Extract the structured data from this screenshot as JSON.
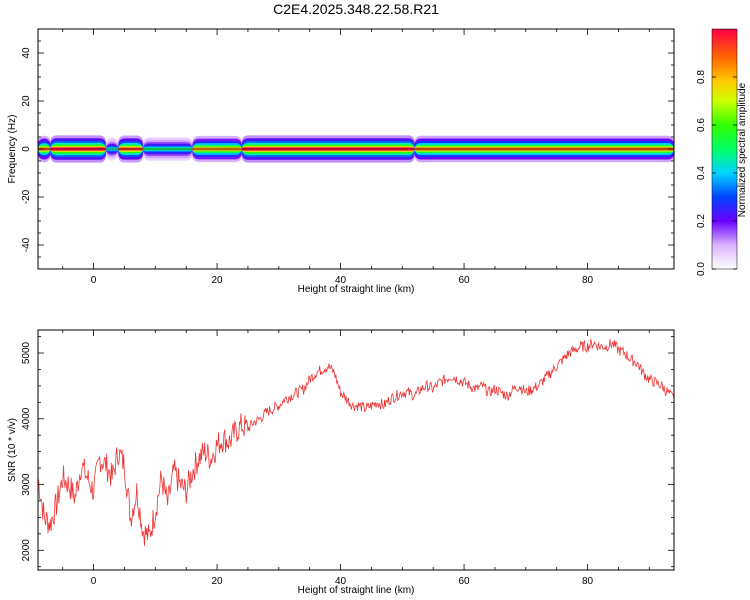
{
  "figure": {
    "title": "C2E4.2025.348.22.58.R21"
  },
  "colors": {
    "snr_line": "#ee3333",
    "frame": "#000000",
    "background": "#ffffff"
  },
  "colorbar": {
    "label": "Normalized spectral amplitude",
    "ticks": [
      "0.0",
      "0.2",
      "0.4",
      "0.6",
      "0.8"
    ],
    "tick_values": [
      0.0,
      0.2,
      0.4,
      0.6,
      0.8
    ],
    "range": [
      0,
      1
    ]
  },
  "chart_data": [
    {
      "type": "heatmap",
      "title": "C2E4.2025.348.22.58.R21",
      "xlabel": "Height of straight line (km)",
      "ylabel": "Frequency (Hz)",
      "xlim": [
        -9,
        94
      ],
      "ylim": [
        -50,
        50
      ],
      "xticks": [
        0,
        20,
        40,
        60,
        80
      ],
      "xtick_labels": [
        "0",
        "20",
        "40",
        "60",
        "80"
      ],
      "yticks": [
        -40,
        -20,
        0,
        20,
        40
      ],
      "ytick_labels": [
        "-40",
        "-20",
        "0",
        "20",
        "40"
      ],
      "description_values": {
        "center_frequency_hz": 0,
        "band_halfwidth_hz": 3,
        "band_segments": [
          {
            "x": [
              -9,
              -7
            ],
            "peak": 0.9
          },
          {
            "x": [
              -7,
              2
            ],
            "peak": 1.0
          },
          {
            "x": [
              2,
              4
            ],
            "peak": 0.45
          },
          {
            "x": [
              4,
              8
            ],
            "peak": 0.95
          },
          {
            "x": [
              8,
              16
            ],
            "peak": 0.5
          },
          {
            "x": [
              16,
              24
            ],
            "peak": 0.85
          },
          {
            "x": [
              24,
              52
            ],
            "peak": 1.0
          },
          {
            "x": [
              52,
              94
            ],
            "peak": 0.9
          }
        ]
      }
    },
    {
      "type": "line",
      "xlabel": "Height of straight line (km)",
      "ylabel": "SNR (10 * v/v)",
      "xlim": [
        -9,
        94
      ],
      "ylim": [
        1700,
        5350
      ],
      "xticks": [
        0,
        20,
        40,
        60,
        80
      ],
      "xtick_labels": [
        "0",
        "20",
        "40",
        "60",
        "80"
      ],
      "yticks": [
        2000,
        3000,
        4000,
        5000
      ],
      "ytick_labels": [
        "2000",
        "3000",
        "4000",
        "5000"
      ],
      "series": [
        {
          "name": "SNR",
          "x": [
            -9,
            -8,
            -7,
            -6,
            -5,
            -4,
            -3,
            -2,
            -1,
            0,
            1,
            2,
            3,
            4,
            5,
            6,
            7,
            8,
            9,
            10,
            11,
            12,
            13,
            14,
            15,
            16,
            17,
            18,
            19,
            20,
            21,
            22,
            23,
            24,
            25,
            26,
            27,
            28,
            29,
            30,
            31,
            32,
            33,
            34,
            35,
            36,
            37,
            38,
            39,
            40,
            41,
            42,
            43,
            44,
            45,
            46,
            47,
            48,
            49,
            50,
            51,
            52,
            53,
            54,
            55,
            56,
            57,
            58,
            59,
            60,
            61,
            62,
            63,
            64,
            65,
            66,
            67,
            68,
            69,
            70,
            71,
            72,
            73,
            74,
            75,
            76,
            77,
            78,
            79,
            80,
            81,
            82,
            83,
            84,
            85,
            86,
            87,
            88,
            89,
            90,
            91,
            92,
            93,
            94
          ],
          "values": [
            3100,
            2500,
            2400,
            2700,
            3100,
            3000,
            2800,
            3300,
            3100,
            2900,
            3400,
            3300,
            3100,
            3500,
            3300,
            2500,
            2900,
            2300,
            2200,
            2600,
            3100,
            2700,
            3200,
            3000,
            2900,
            3200,
            3400,
            3500,
            3400,
            3600,
            3700,
            3650,
            3800,
            3900,
            3850,
            3950,
            4000,
            4100,
            4150,
            4200,
            4300,
            4350,
            4400,
            4450,
            4600,
            4700,
            4750,
            4800,
            4700,
            4400,
            4300,
            4200,
            4200,
            4150,
            4200,
            4250,
            4200,
            4300,
            4350,
            4400,
            4400,
            4350,
            4450,
            4500,
            4450,
            4550,
            4600,
            4650,
            4600,
            4550,
            4500,
            4450,
            4500,
            4400,
            4450,
            4400,
            4350,
            4450,
            4500,
            4400,
            4450,
            4500,
            4600,
            4700,
            4800,
            4900,
            5000,
            5050,
            5100,
            5100,
            5150,
            5100,
            5100,
            5150,
            5050,
            5000,
            4900,
            4850,
            4700,
            4600,
            4550,
            4500,
            4400,
            4300
          ]
        }
      ]
    }
  ]
}
